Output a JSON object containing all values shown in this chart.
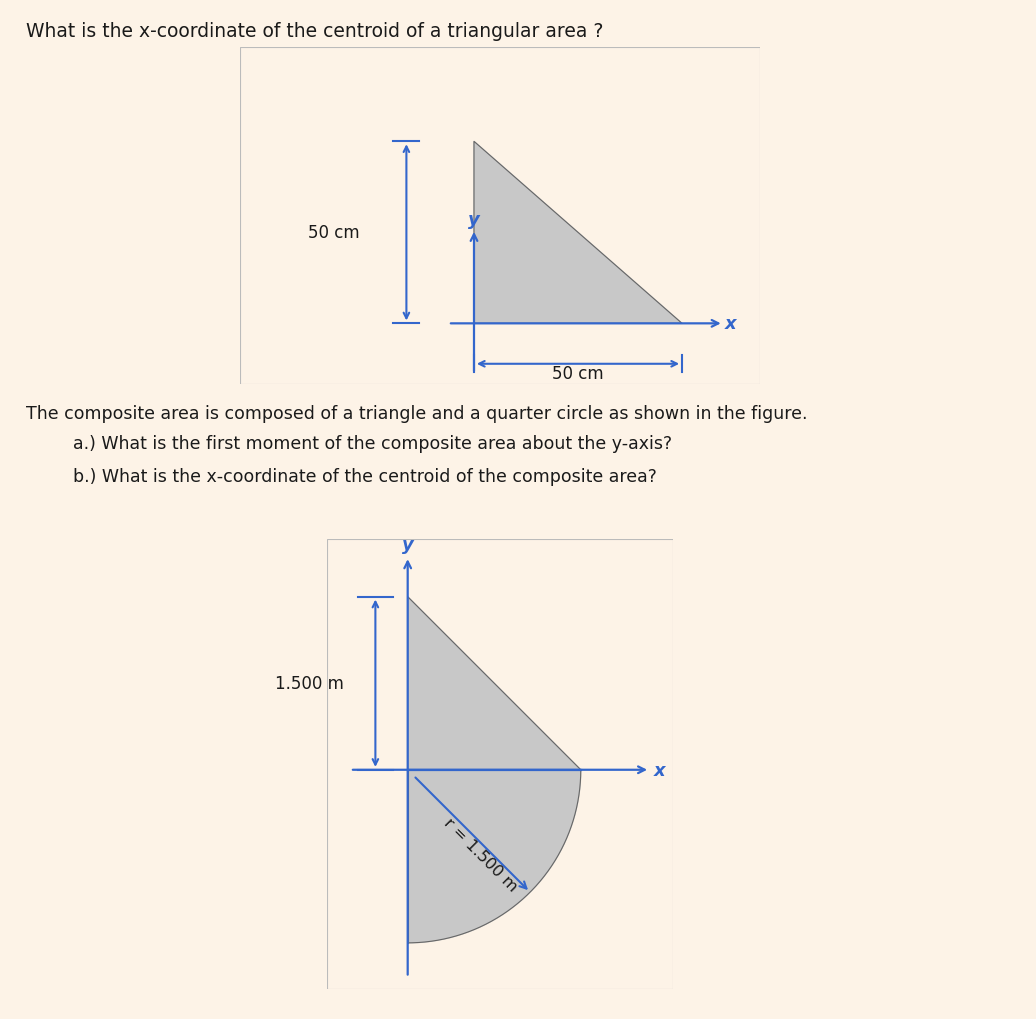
{
  "background_color": "#fdf3e7",
  "panel_color": "#ffffff",
  "title1": "What is the x-coordinate of the centroid of a triangular area ?",
  "title1_fontsize": 13.5,
  "triangle_dim_label": "50 cm",
  "composite_text1": "The composite area is composed of a triangle and a quarter circle as shown in the figure.",
  "composite_text2": "a.) What is the first moment of the composite area about the y-axis?",
  "composite_text3": "b.) What is the x-coordinate of the centroid of the composite area?",
  "second_height_label": "1.500 m",
  "second_radius_label": "r = 1.500 m",
  "axis_color": "#3366cc",
  "shape_fill": "#c8c8c8",
  "shape_edge": "#666666",
  "text_color": "#1a1a1a",
  "panel_border": "#bbbbbb"
}
